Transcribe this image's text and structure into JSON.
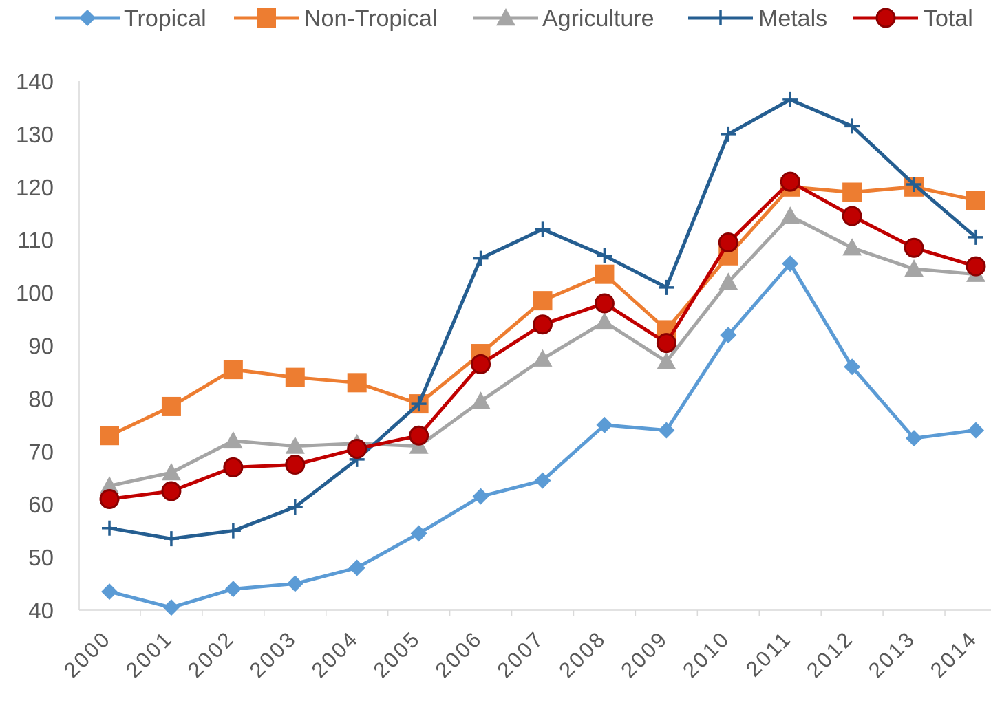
{
  "chart_data": {
    "type": "line",
    "title": "",
    "xlabel": "",
    "ylabel": "",
    "categories": [
      "2000",
      "2001",
      "2002",
      "2003",
      "2004",
      "2005",
      "2006",
      "2007",
      "2008",
      "2009",
      "2010",
      "2011",
      "2012",
      "2013",
      "2014"
    ],
    "ylim": [
      40,
      140
    ],
    "yticks": [
      40,
      50,
      60,
      70,
      80,
      90,
      100,
      110,
      120,
      130,
      140
    ],
    "grid": false,
    "legend_position": "top",
    "series": [
      {
        "name": "Tropical",
        "color": "#5B9BD5",
        "marker": "diamond",
        "values": [
          43.5,
          40.5,
          44,
          45,
          48,
          54.5,
          61.5,
          64.5,
          75,
          74,
          92,
          105.5,
          86,
          72.5,
          74
        ]
      },
      {
        "name": "Non-Tropical",
        "color": "#ED7D31",
        "marker": "square",
        "values": [
          73,
          78.5,
          85.5,
          84,
          83,
          79,
          88.5,
          98.5,
          103.5,
          93,
          107,
          120,
          119,
          120,
          117.5
        ]
      },
      {
        "name": "Agriculture",
        "color": "#A5A5A5",
        "marker": "triangle",
        "values": [
          63.5,
          66,
          72,
          71,
          71.5,
          71,
          79.5,
          87.5,
          94.5,
          87,
          102,
          114.5,
          108.5,
          104.5,
          103.5
        ]
      },
      {
        "name": "Metals",
        "color": "#255E91",
        "marker": "plus",
        "values": [
          55.5,
          53.5,
          55,
          59.5,
          68.5,
          79,
          106.5,
          112,
          107,
          101,
          130,
          136.5,
          131.5,
          120.5,
          110.5
        ]
      },
      {
        "name": "Total",
        "color": "#C00000",
        "marker": "circle",
        "values": [
          61,
          62.5,
          67,
          67.5,
          70.5,
          73,
          86.5,
          94,
          98,
          90.5,
          109.5,
          121,
          114.5,
          108.5,
          105
        ]
      }
    ]
  }
}
